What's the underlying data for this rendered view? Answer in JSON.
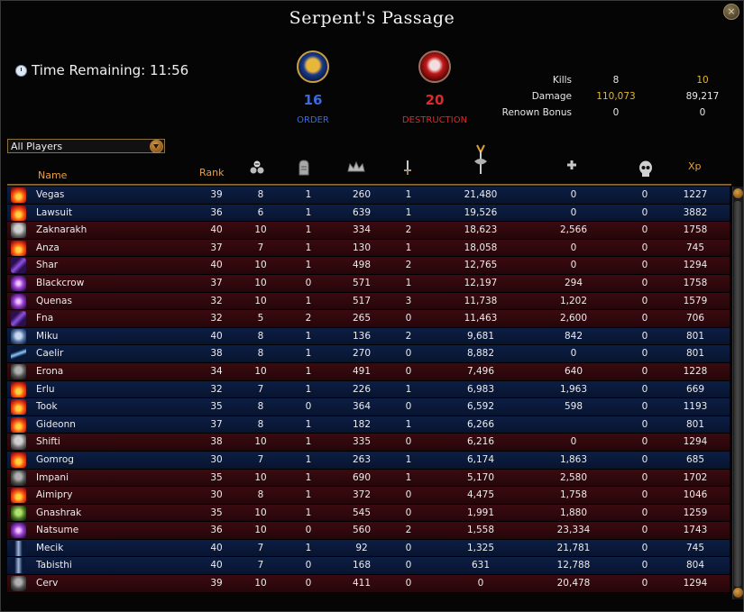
{
  "window": {
    "title": "Serpent's Passage",
    "close_label": "×"
  },
  "timer": {
    "label": "Time Remaining: 11:56"
  },
  "factions": {
    "order": {
      "score": "16",
      "name": "ORDER"
    },
    "destruction": {
      "score": "20",
      "name": "DESTRUCTION"
    }
  },
  "stats": [
    {
      "label": "Kills",
      "order": "8",
      "destruction": "10"
    },
    {
      "label": "Damage",
      "order": "110,073",
      "destruction": "89,217"
    },
    {
      "label": "Renown Bonus",
      "order": "0",
      "destruction": "0"
    }
  ],
  "filter": {
    "selected": "All Players"
  },
  "columns": {
    "name": "Name",
    "rank": "Rank",
    "xp": "Xp"
  },
  "header_icons": [
    "skulls-icon",
    "tombstone-icon",
    "crown-icon",
    "dagger-icon",
    "axe-icon",
    "healing-cross-icon",
    "skull-icon"
  ],
  "players": [
    {
      "name": "Vegas",
      "side": "o",
      "icon": "ic-fire",
      "rank": "39",
      "kills": "8",
      "deaths": "1",
      "renown": "260",
      "dblows": "1",
      "damage": "21,480",
      "healing": "0",
      "protection": "0",
      "xp": "1227"
    },
    {
      "name": "Lawsuit",
      "side": "o",
      "icon": "ic-fire",
      "rank": "36",
      "kills": "6",
      "deaths": "1",
      "renown": "639",
      "dblows": "1",
      "damage": "19,526",
      "healing": "0",
      "protection": "0",
      "xp": "3882"
    },
    {
      "name": "Zaknarakh",
      "side": "d",
      "icon": "ic-gear",
      "rank": "40",
      "kills": "10",
      "deaths": "1",
      "renown": "334",
      "dblows": "2",
      "damage": "18,623",
      "healing": "2,566",
      "protection": "0",
      "xp": "1758"
    },
    {
      "name": "Anza",
      "side": "d",
      "icon": "ic-fire",
      "rank": "37",
      "kills": "7",
      "deaths": "1",
      "renown": "130",
      "dblows": "1",
      "damage": "18,058",
      "healing": "0",
      "protection": "0",
      "xp": "745"
    },
    {
      "name": "Shar",
      "side": "d",
      "icon": "ic-claw",
      "rank": "40",
      "kills": "10",
      "deaths": "1",
      "renown": "498",
      "dblows": "2",
      "damage": "12,765",
      "healing": "0",
      "protection": "0",
      "xp": "1294"
    },
    {
      "name": "Blackcrow",
      "side": "d",
      "icon": "ic-purple",
      "rank": "37",
      "kills": "10",
      "deaths": "0",
      "renown": "571",
      "dblows": "1",
      "damage": "12,197",
      "healing": "294",
      "protection": "0",
      "xp": "1758"
    },
    {
      "name": "Quenas",
      "side": "d",
      "icon": "ic-purple",
      "rank": "32",
      "kills": "10",
      "deaths": "1",
      "renown": "517",
      "dblows": "3",
      "damage": "11,738",
      "healing": "1,202",
      "protection": "0",
      "xp": "1579"
    },
    {
      "name": "Fna",
      "side": "d",
      "icon": "ic-claw",
      "rank": "32",
      "kills": "5",
      "deaths": "2",
      "renown": "265",
      "dblows": "0",
      "damage": "11,463",
      "healing": "2,600",
      "protection": "0",
      "xp": "706"
    },
    {
      "name": "Miku",
      "side": "o",
      "icon": "ic-wolf",
      "rank": "40",
      "kills": "8",
      "deaths": "1",
      "renown": "136",
      "dblows": "2",
      "damage": "9,681",
      "healing": "842",
      "protection": "0",
      "xp": "801"
    },
    {
      "name": "Caelir",
      "side": "o",
      "icon": "ic-blade",
      "rank": "38",
      "kills": "8",
      "deaths": "1",
      "renown": "270",
      "dblows": "0",
      "damage": "8,882",
      "healing": "0",
      "protection": "0",
      "xp": "801"
    },
    {
      "name": "Erona",
      "side": "d",
      "icon": "ic-hood",
      "rank": "34",
      "kills": "10",
      "deaths": "1",
      "renown": "491",
      "dblows": "0",
      "damage": "7,496",
      "healing": "640",
      "protection": "0",
      "xp": "1228"
    },
    {
      "name": "Erlu",
      "side": "o",
      "icon": "ic-fire",
      "rank": "32",
      "kills": "7",
      "deaths": "1",
      "renown": "226",
      "dblows": "1",
      "damage": "6,983",
      "healing": "1,963",
      "protection": "0",
      "xp": "669"
    },
    {
      "name": "Took",
      "side": "o",
      "icon": "ic-fire",
      "rank": "35",
      "kills": "8",
      "deaths": "0",
      "renown": "364",
      "dblows": "0",
      "damage": "6,592",
      "healing": "598",
      "protection": "0",
      "xp": "1193"
    },
    {
      "name": "Gideonn",
      "side": "o",
      "icon": "ic-fire",
      "rank": "37",
      "kills": "8",
      "deaths": "1",
      "renown": "182",
      "dblows": "1",
      "damage": "6,266",
      "healing": "",
      "protection": "0",
      "xp": "801"
    },
    {
      "name": "Shifti",
      "side": "d",
      "icon": "ic-gear",
      "rank": "38",
      "kills": "10",
      "deaths": "1",
      "renown": "335",
      "dblows": "0",
      "damage": "6,216",
      "healing": "0",
      "protection": "0",
      "xp": "1294"
    },
    {
      "name": "Gomrog",
      "side": "o",
      "icon": "ic-fire",
      "rank": "30",
      "kills": "7",
      "deaths": "1",
      "renown": "263",
      "dblows": "1",
      "damage": "6,174",
      "healing": "1,863",
      "protection": "0",
      "xp": "685"
    },
    {
      "name": "Impani",
      "side": "d",
      "icon": "ic-hood",
      "rank": "35",
      "kills": "10",
      "deaths": "1",
      "renown": "690",
      "dblows": "1",
      "damage": "5,170",
      "healing": "2,580",
      "protection": "0",
      "xp": "1702"
    },
    {
      "name": "Aimipry",
      "side": "d",
      "icon": "ic-fire",
      "rank": "30",
      "kills": "8",
      "deaths": "1",
      "renown": "372",
      "dblows": "0",
      "damage": "4,475",
      "healing": "1,758",
      "protection": "0",
      "xp": "1046"
    },
    {
      "name": "Gnashrak",
      "side": "d",
      "icon": "ic-goblin",
      "rank": "35",
      "kills": "10",
      "deaths": "1",
      "renown": "545",
      "dblows": "0",
      "damage": "1,991",
      "healing": "1,880",
      "protection": "0",
      "xp": "1259"
    },
    {
      "name": "Natsume",
      "side": "d",
      "icon": "ic-purple",
      "rank": "36",
      "kills": "10",
      "deaths": "0",
      "renown": "560",
      "dblows": "2",
      "damage": "1,558",
      "healing": "23,334",
      "protection": "0",
      "xp": "1743"
    },
    {
      "name": "Mecik",
      "side": "o",
      "icon": "ic-wing",
      "rank": "40",
      "kills": "7",
      "deaths": "1",
      "renown": "92",
      "dblows": "0",
      "damage": "1,325",
      "healing": "21,781",
      "protection": "0",
      "xp": "745"
    },
    {
      "name": "Tabisthi",
      "side": "o",
      "icon": "ic-wing",
      "rank": "40",
      "kills": "7",
      "deaths": "0",
      "renown": "168",
      "dblows": "0",
      "damage": "631",
      "healing": "12,788",
      "protection": "0",
      "xp": "804"
    },
    {
      "name": "Cerv",
      "side": "d",
      "icon": "ic-hood",
      "rank": "39",
      "kills": "10",
      "deaths": "0",
      "renown": "411",
      "dblows": "0",
      "damage": "0",
      "healing": "20,478",
      "protection": "0",
      "xp": "1294"
    }
  ]
}
